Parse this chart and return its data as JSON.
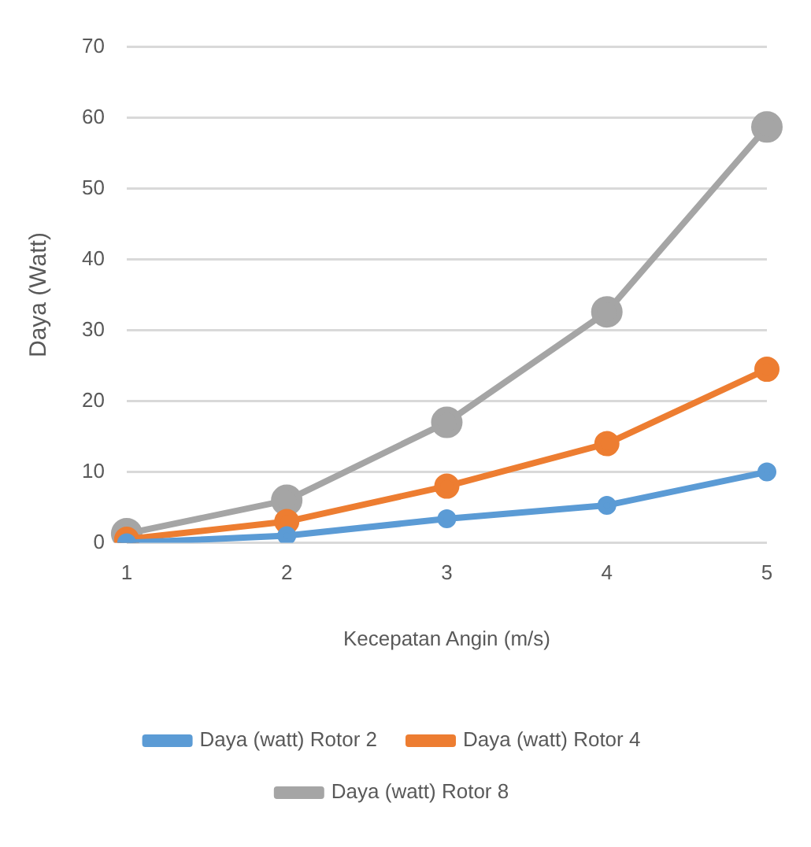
{
  "chart_data": {
    "type": "line",
    "xlabel": "Kecepatan Angin (m/s)",
    "ylabel": "Daya (Watt)",
    "categories": [
      "1",
      "2",
      "3",
      "4",
      "5"
    ],
    "series": [
      {
        "name": "Daya (watt) Rotor 2",
        "color": "#5b9bd5",
        "values": [
          0,
          1,
          3.4,
          5.3,
          10
        ]
      },
      {
        "name": "Daya (watt) Rotor 4",
        "color": "#ed7d31",
        "values": [
          0.5,
          3,
          8,
          14,
          24.5
        ]
      },
      {
        "name": "Daya (watt) Rotor 8",
        "color": "#a5a5a5",
        "values": [
          1.3,
          6,
          17,
          32.6,
          58.7
        ]
      }
    ],
    "ylim": [
      0,
      70
    ],
    "yticks": [
      0,
      10,
      20,
      30,
      40,
      50,
      60,
      70
    ],
    "grid": "y",
    "legend": "bottom",
    "marker": "circle",
    "line_style": "solid"
  }
}
